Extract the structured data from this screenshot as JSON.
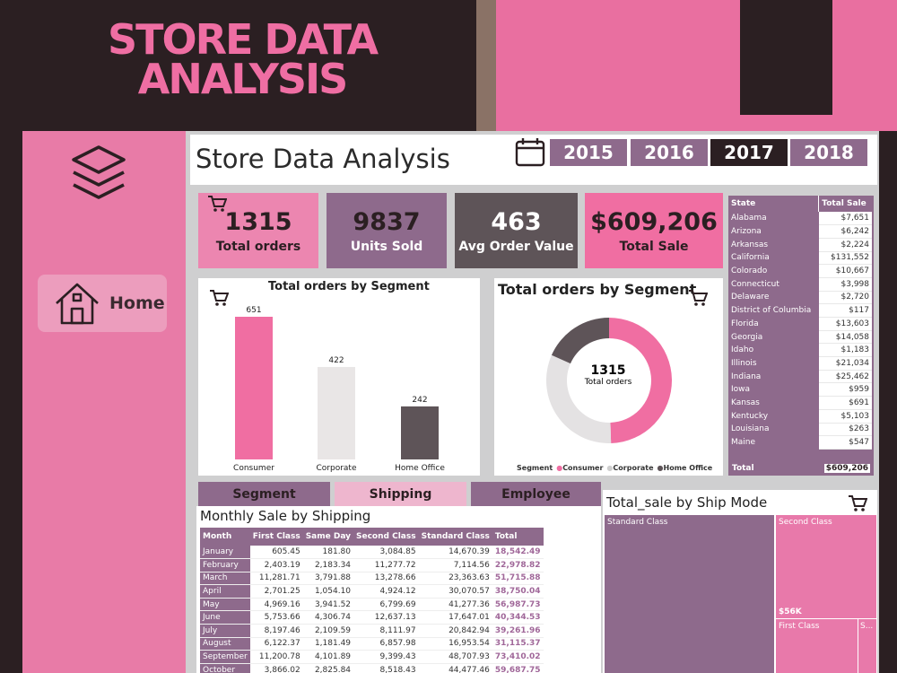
{
  "hero_title_line1": "STORE DATA",
  "hero_title_line2": "ANALYSIS",
  "sidebar": {
    "home_label": "Home"
  },
  "dashboard_title": "Store Data Analysis",
  "years": [
    "2015",
    "2016",
    "2017",
    "2018"
  ],
  "selected_year": "2017",
  "kpis": [
    {
      "value": "1315",
      "label": "Total orders"
    },
    {
      "value": "9837",
      "label": "Units Sold"
    },
    {
      "value": "463",
      "label": "Avg Order Value"
    },
    {
      "value": "$609,206",
      "label": "Total Sale"
    }
  ],
  "state_table": {
    "headers": [
      "State",
      "Total Sale"
    ],
    "rows": [
      [
        "Alabama",
        "$7,651"
      ],
      [
        "Arizona",
        "$6,242"
      ],
      [
        "Arkansas",
        "$2,224"
      ],
      [
        "California",
        "$131,552"
      ],
      [
        "Colorado",
        "$10,667"
      ],
      [
        "Connecticut",
        "$3,998"
      ],
      [
        "Delaware",
        "$2,720"
      ],
      [
        "District of Columbia",
        "$117"
      ],
      [
        "Florida",
        "$13,603"
      ],
      [
        "Georgia",
        "$14,058"
      ],
      [
        "Idaho",
        "$1,183"
      ],
      [
        "Illinois",
        "$21,034"
      ],
      [
        "Indiana",
        "$25,462"
      ],
      [
        "Iowa",
        "$959"
      ],
      [
        "Kansas",
        "$691"
      ],
      [
        "Kentucky",
        "$5,103"
      ],
      [
        "Louisiana",
        "$263"
      ],
      [
        "Maine",
        "$547"
      ]
    ],
    "total_label": "Total",
    "total_value": "$609,206"
  },
  "bar_panel_title": "Total orders by Segment",
  "donut_panel_title": "Total orders by Segment",
  "donut_center_value": "1315",
  "donut_center_label": "Total orders",
  "donut_legend_title": "Segment",
  "chart_data": [
    {
      "type": "bar",
      "title": "Total orders by Segment",
      "categories": [
        "Consumer",
        "Corporate",
        "Home Office"
      ],
      "values": [
        651,
        422,
        242
      ],
      "colors": [
        "#f06ea2",
        "#e9e6e6",
        "#5e5458"
      ]
    },
    {
      "type": "pie",
      "title": "Total orders by Segment",
      "categories": [
        "Consumer",
        "Corporate",
        "Home Office"
      ],
      "values": [
        651,
        422,
        242
      ],
      "colors": [
        "#f06ea2",
        "#e4e2e3",
        "#5e5458"
      ],
      "legend": "bottom"
    },
    {
      "type": "table",
      "title": "Total_sale by Ship Mode",
      "categories": [
        "Standard Class",
        "Second Class",
        "First Class",
        "S..."
      ],
      "visible_value_labels": {
        "Second Class": "$56K"
      }
    }
  ],
  "tabs": [
    "Segment",
    "Shipping",
    "Employee"
  ],
  "active_tab": "Shipping",
  "monthly_title": "Monthly Sale by Shipping",
  "monthly_table": {
    "headers": [
      "Month",
      "First Class",
      "Same Day",
      "Second Class",
      "Standard Class",
      "Total"
    ],
    "rows": [
      [
        "January",
        "605.45",
        "181.80",
        "3,084.85",
        "14,670.39",
        "18,542.49"
      ],
      [
        "February",
        "2,403.19",
        "2,183.34",
        "11,277.72",
        "7,114.56",
        "22,978.82"
      ],
      [
        "March",
        "11,281.71",
        "3,791.88",
        "13,278.66",
        "23,363.63",
        "51,715.88"
      ],
      [
        "April",
        "2,701.25",
        "1,054.10",
        "4,924.12",
        "30,070.57",
        "38,750.04"
      ],
      [
        "May",
        "4,969.16",
        "3,941.52",
        "6,799.69",
        "41,277.36",
        "56,987.73"
      ],
      [
        "June",
        "5,753.66",
        "4,306.74",
        "12,637.13",
        "17,647.01",
        "40,344.53"
      ],
      [
        "July",
        "8,197.46",
        "2,109.59",
        "8,111.97",
        "20,842.94",
        "39,261.96"
      ],
      [
        "August",
        "6,122.37",
        "1,181.49",
        "6,857.98",
        "16,953.54",
        "31,115.37"
      ],
      [
        "September",
        "11,200.78",
        "4,101.89",
        "9,399.43",
        "48,707.93",
        "73,410.02"
      ],
      [
        "October",
        "3,866.02",
        "2,825.84",
        "8,518.43",
        "44,477.46",
        "59,687.75"
      ]
    ]
  },
  "treemap_title": "Total_sale by Ship Mode",
  "treemap": {
    "standard_label": "Standard Class",
    "second_label": "Second Class",
    "second_value": "$56K",
    "first_label": "First Class",
    "sameday_label": "S..."
  },
  "colors": {
    "pink": "#e96fa0",
    "purple": "#8e6a8c",
    "dark": "#2b1f22",
    "grey_dark": "#5e5458",
    "light_pink": "#ec9dbd"
  },
  "icons": [
    "layers-icon",
    "home-icon",
    "calendar-icon",
    "cart-icon"
  ]
}
